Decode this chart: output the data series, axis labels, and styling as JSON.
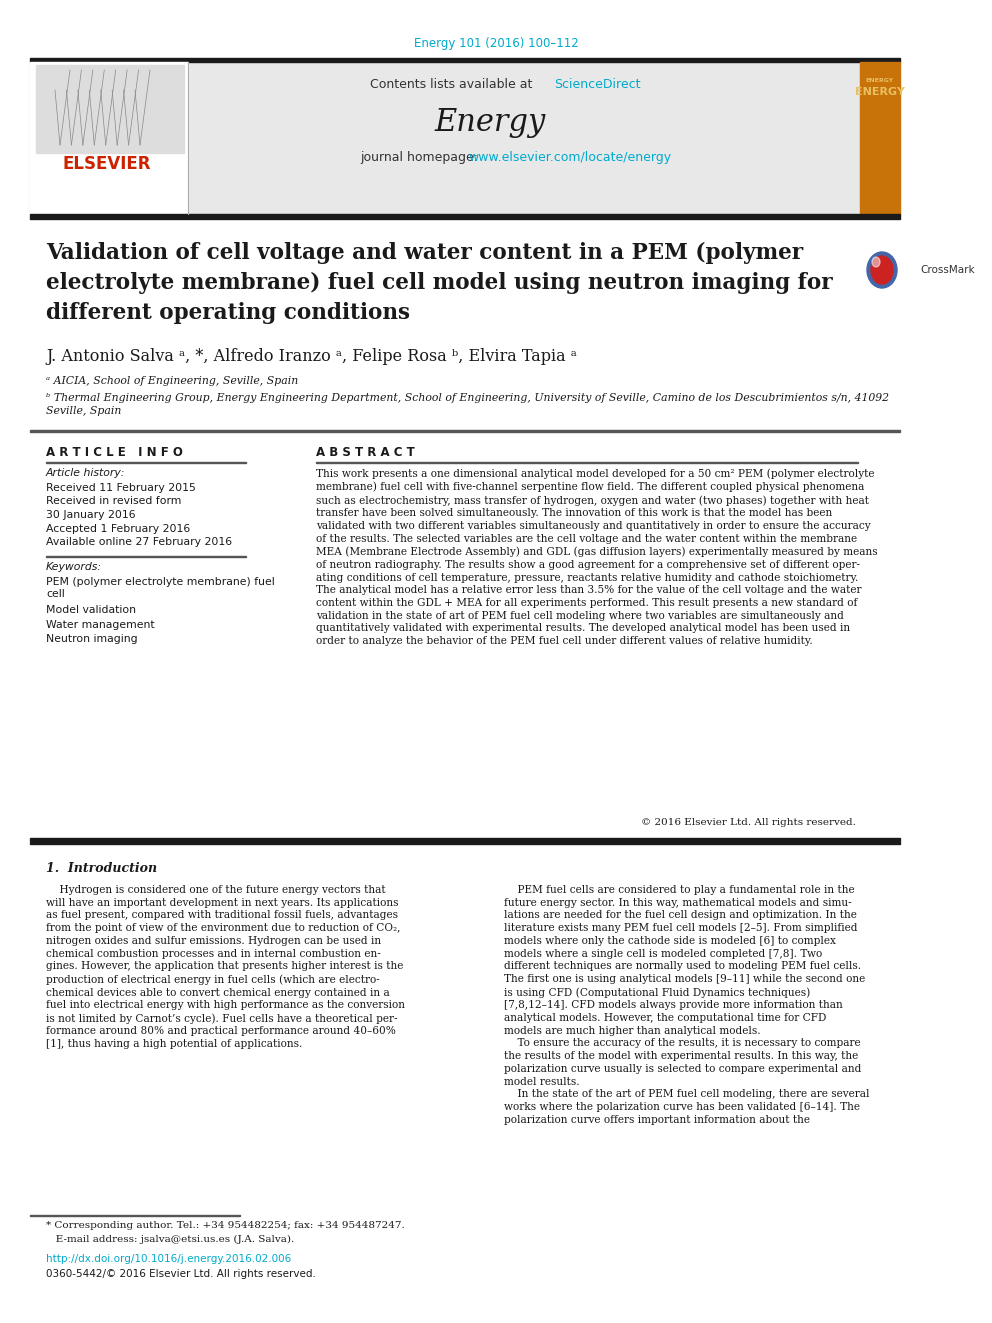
{
  "doi_text": "Energy 101 (2016) 100–112",
  "doi_color": "#00aacc",
  "contents_text": "Contents lists available at ",
  "sciencedirect_text": "ScienceDirect",
  "sciencedirect_color": "#00aacc",
  "journal_name": "Energy",
  "journal_homepage_text": "journal homepage: ",
  "journal_url": "www.elsevier.com/locate/energy",
  "journal_url_color": "#00aacc",
  "title": "Validation of cell voltage and water content in a PEM (polymer\nelectrolyte membrane) fuel cell model using neutron imaging for\ndifferent operating conditions",
  "authors": "J. Antonio Salva ᵃ, *, Alfredo Iranzo ᵃ, Felipe Rosa ᵇ, Elvira Tapia ᵃ",
  "affil_a": "ᵃ AICIA, School of Engineering, Seville, Spain",
  "affil_b": "ᵇ Thermal Engineering Group, Energy Engineering Department, School of Engineering, University of Seville, Camino de los Descubrimientos s/n, 41092\nSeville, Spain",
  "article_info_header": "A R T I C L E   I N F O",
  "article_history_label": "Article history:",
  "received1": "Received 11 February 2015",
  "received2": "Received in revised form",
  "received3": "30 January 2016",
  "accepted": "Accepted 1 February 2016",
  "available": "Available online 27 February 2016",
  "keywords_label": "Keywords:",
  "kw1": "PEM (polymer electrolyte membrane) fuel\ncell",
  "kw2": "Model validation",
  "kw3": "Water management",
  "kw4": "Neutron imaging",
  "abstract_header": "A B S T R A C T",
  "abstract_text": "This work presents a one dimensional analytical model developed for a 50 cm² PEM (polymer electrolyte\nmembrane) fuel cell with five-channel serpentine flow field. The different coupled physical phenomena\nsuch as electrochemistry, mass transfer of hydrogen, oxygen and water (two phases) together with heat\ntransfer have been solved simultaneously. The innovation of this work is that the model has been\nvalidated with two different variables simultaneously and quantitatively in order to ensure the accuracy\nof the results. The selected variables are the cell voltage and the water content within the membrane\nMEA (Membrane Electrode Assembly) and GDL (gas diffusion layers) experimentally measured by means\nof neutron radiography. The results show a good agreement for a comprehensive set of different oper-\nating conditions of cell temperature, pressure, reactants relative humidity and cathode stoichiometry.\nThe analytical model has a relative error less than 3.5% for the value of the cell voltage and the water\ncontent within the GDL + MEA for all experiments performed. This result presents a new standard of\nvalidation in the state of art of PEM fuel cell modeling where two variables are simultaneously and\nquantitatively validated with experimental results. The developed analytical model has been used in\norder to analyze the behavior of the PEM fuel cell under different values of relative humidity.",
  "copyright_text": "© 2016 Elsevier Ltd. All rights reserved.",
  "section1_header": "1.  Introduction",
  "intro_col1": "    Hydrogen is considered one of the future energy vectors that\nwill have an important development in next years. Its applications\nas fuel present, compared with traditional fossil fuels, advantages\nfrom the point of view of the environment due to reduction of CO₂,\nnitrogen oxides and sulfur emissions. Hydrogen can be used in\nchemical combustion processes and in internal combustion en-\ngines. However, the application that presents higher interest is the\nproduction of electrical energy in fuel cells (which are electro-\nchemical devices able to convert chemical energy contained in a\nfuel into electrical energy with high performance as the conversion\nis not limited by Carnot’s cycle). Fuel cells have a theoretical per-\nformance around 80% and practical performance around 40–60%\n[1], thus having a high potential of applications.",
  "intro_col2": "    PEM fuel cells are considered to play a fundamental role in the\nfuture energy sector. In this way, mathematical models and simu-\nlations are needed for the fuel cell design and optimization. In the\nliterature exists many PEM fuel cell models [2–5]. From simplified\nmodels where only the cathode side is modeled [6] to complex\nmodels where a single cell is modeled completed [7,8]. Two\ndifferent techniques are normally used to modeling PEM fuel cells.\nThe first one is using analytical models [9–11] while the second one\nis using CFD (Computational Fluid Dynamics techniques)\n[7,8,12–14]. CFD models always provide more information than\nanalytical models. However, the computational time for CFD\nmodels are much higher than analytical models.\n    To ensure the accuracy of the results, it is necessary to compare\nthe results of the model with experimental results. In this way, the\npolarization curve usually is selected to compare experimental and\nmodel results.\n    In the state of the art of PEM fuel cell modeling, there are several\nworks where the polarization curve has been validated [6–14]. The\npolarization curve offers important information about the",
  "footnote1": "* Corresponding author. Tel.: +34 954482254; fax: +34 954487247.",
  "footnote2": "   E-mail address: jsalva@etsi.us.es (J.A. Salva).",
  "doi_footer": "http://dx.doi.org/10.1016/j.energy.2016.02.006",
  "doi_footer_color": "#00aacc",
  "issn_text": "0360-5442/© 2016 Elsevier Ltd. All rights reserved.",
  "header_bg_color": "#e8e8e8",
  "thick_line_color": "#1a1a1a",
  "elsevier_text_color": "#cc2200",
  "background_color": "#ffffff"
}
